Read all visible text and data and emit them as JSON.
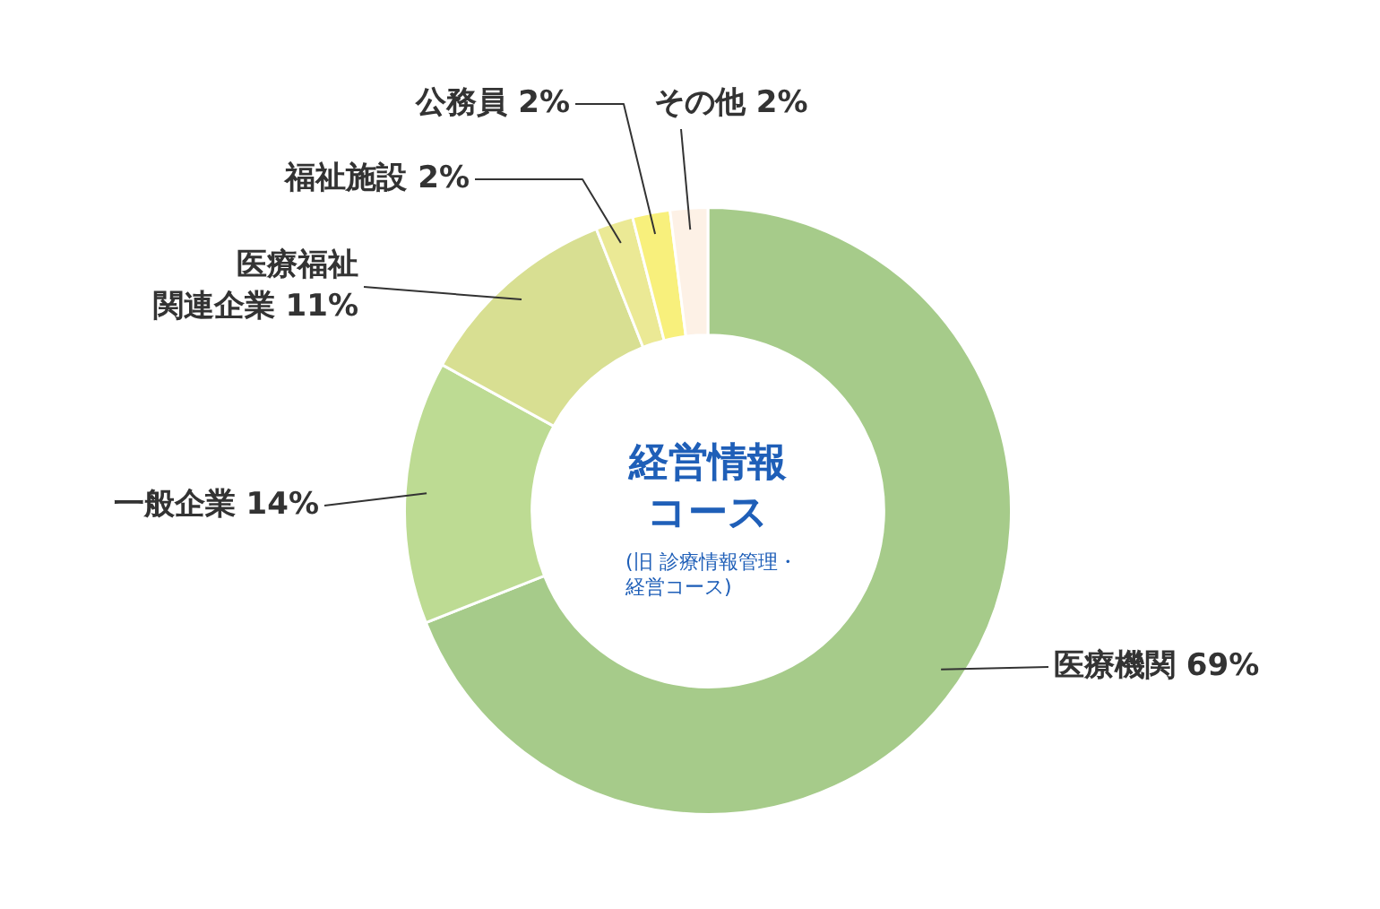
{
  "chart_data": {
    "type": "donut",
    "title": "経営情報コース",
    "subtitle": "(旧 診療情報管理・経営コース)",
    "categories": [
      "医療機関",
      "一般企業",
      "医療福祉関連企業",
      "福祉施設",
      "公務員",
      "その他"
    ],
    "values": [
      69,
      14,
      11,
      2,
      2,
      2
    ],
    "colors": [
      "#a6cb8a",
      "#bddb93",
      "#d8df92",
      "#ebe995",
      "#f8f07c",
      "#fdf1e6"
    ],
    "value_labels": [
      "69%",
      "14%",
      "11%",
      "2%",
      "2%",
      "2%"
    ],
    "legend": false
  }
}
